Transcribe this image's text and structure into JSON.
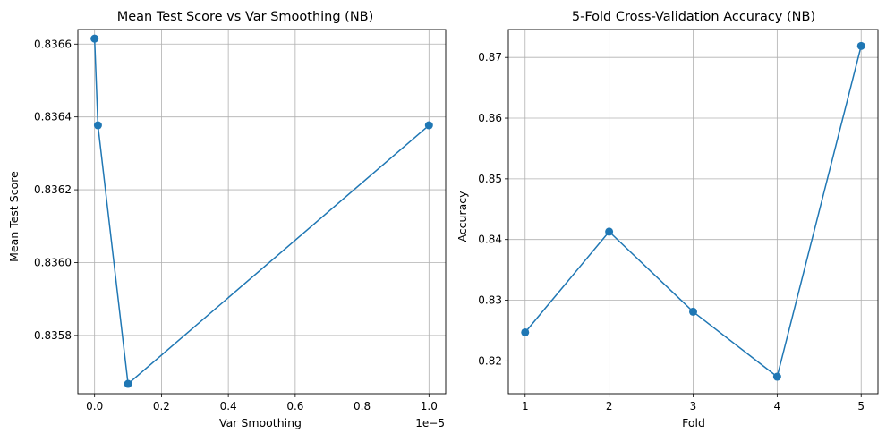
{
  "colors": {
    "series": "#1f77b4",
    "grid": "#b0b0b0",
    "axis": "#000000",
    "background": "#ffffff"
  },
  "chart_data": [
    {
      "type": "line",
      "title": "Mean Test Score vs Var Smoothing (NB)",
      "xlabel": "Var Smoothing",
      "ylabel": "Mean Test Score",
      "x_offset_label": "1e−5",
      "x_tick_values": [
        0.0,
        0.2,
        0.4,
        0.6,
        0.8,
        1.0
      ],
      "x_tick_labels": [
        "0.0",
        "0.2",
        "0.4",
        "0.6",
        "0.8",
        "1.0"
      ],
      "y_tick_values": [
        0.8358,
        0.836,
        0.8362,
        0.8364,
        0.8366
      ],
      "y_tick_labels": [
        "0.8358",
        "0.8360",
        "0.8362",
        "0.8364",
        "0.8366"
      ],
      "xlim": [
        -0.05,
        1.05
      ],
      "ylim": [
        0.83564,
        0.83664
      ],
      "grid": true,
      "marker": "circle",
      "series": [
        {
          "x": [
            0.0,
            0.01,
            0.1,
            1.0
          ],
          "y": [
            0.836615,
            0.836377,
            0.835667,
            0.836377
          ]
        }
      ]
    },
    {
      "type": "line",
      "title": "5-Fold Cross-Validation Accuracy (NB)",
      "xlabel": "Fold",
      "ylabel": "Accuracy",
      "x_tick_values": [
        1,
        2,
        3,
        4,
        5
      ],
      "x_tick_labels": [
        "1",
        "2",
        "3",
        "4",
        "5"
      ],
      "y_tick_values": [
        0.82,
        0.83,
        0.84,
        0.85,
        0.86,
        0.87
      ],
      "y_tick_labels": [
        "0.82",
        "0.83",
        "0.84",
        "0.85",
        "0.86",
        "0.87"
      ],
      "xlim": [
        0.8,
        5.2
      ],
      "ylim": [
        0.8146,
        0.8746
      ],
      "grid": true,
      "marker": "circle",
      "series": [
        {
          "x": [
            1,
            2,
            3,
            4,
            5
          ],
          "y": [
            0.8247,
            0.8413,
            0.8281,
            0.8174,
            0.8719
          ]
        }
      ]
    }
  ]
}
